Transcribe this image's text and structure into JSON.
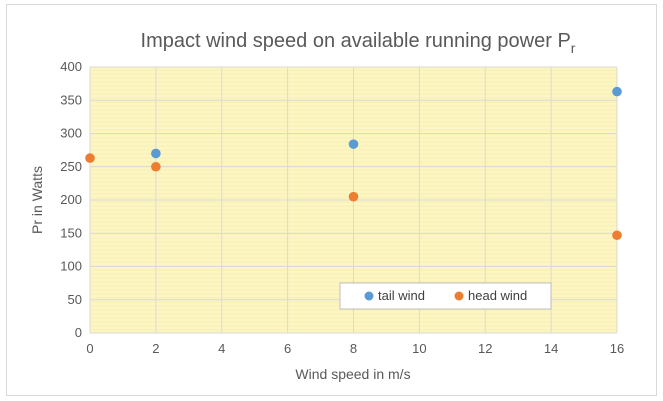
{
  "chart_data": {
    "type": "scatter",
    "title": "Impact wind speed on available running power P",
    "title_subscript": "r",
    "xlabel": "Wind speed in m/s",
    "ylabel": "Pr in Watts",
    "xlim": [
      0,
      16
    ],
    "ylim": [
      0,
      400
    ],
    "x_ticks": [
      0,
      2,
      4,
      6,
      8,
      10,
      12,
      14,
      16
    ],
    "y_ticks": [
      0,
      50,
      100,
      150,
      200,
      250,
      300,
      350,
      400
    ],
    "grid": true,
    "legend_position": "bottom-right",
    "plot_background": "#fdf6c3",
    "series": [
      {
        "name": "tail wind",
        "color": "#5b9bd5",
        "x": [
          2,
          8,
          16
        ],
        "y": [
          270,
          284,
          363
        ]
      },
      {
        "name": "head wind",
        "color": "#ed7d31",
        "x": [
          0,
          2,
          8,
          16
        ],
        "y": [
          263,
          250,
          205,
          147
        ]
      }
    ]
  }
}
